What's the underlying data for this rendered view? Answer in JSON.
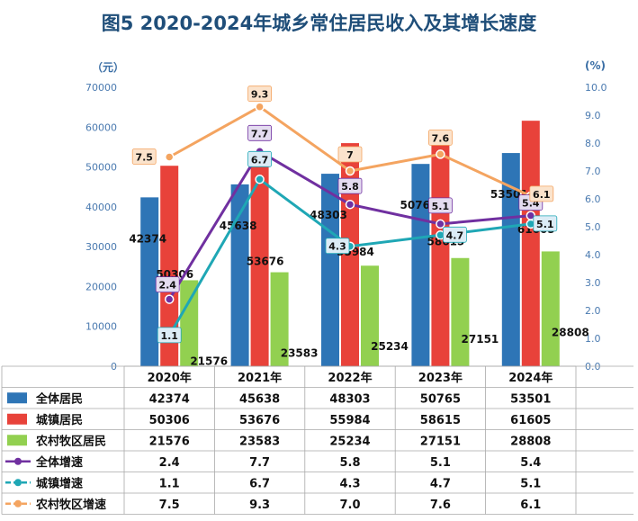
{
  "title": "图5  2020-2024年城乡常住居民收入及其增长速度",
  "chart_data": {
    "type": "bar",
    "unit_left": "（元）",
    "unit_right": "(%)",
    "categories": [
      "2020年",
      "2021年",
      "2022年",
      "2023年",
      "2024年"
    ],
    "left_axis": {
      "ylim": [
        0,
        70000
      ],
      "ticks": [
        "0",
        "10000",
        "20000",
        "30000",
        "40000",
        "50000",
        "60000",
        "70000"
      ]
    },
    "right_axis": {
      "ylim": [
        0,
        10
      ],
      "ticks": [
        "0.0",
        "1.0",
        "2.0",
        "3.0",
        "4.0",
        "5.0",
        "6.0",
        "7.0",
        "8.0",
        "9.0",
        "10.0"
      ]
    },
    "bar_series": [
      {
        "name": "全体居民",
        "color": "#2e75b6",
        "values": [
          42374,
          45638,
          48303,
          50765,
          53501
        ]
      },
      {
        "name": "城镇居民",
        "color": "#e8423a",
        "values": [
          50306,
          53676,
          55984,
          58615,
          61605
        ]
      },
      {
        "name": "农村牧区居民",
        "color": "#92d050",
        "values": [
          21576,
          23583,
          25234,
          27151,
          28808
        ]
      }
    ],
    "line_series": [
      {
        "name": "全体增速",
        "color": "#7030a0",
        "values": [
          2.4,
          7.7,
          5.8,
          5.1,
          5.4
        ]
      },
      {
        "name": "城镇增速",
        "color": "#1fa7b5",
        "values": [
          1.1,
          6.7,
          4.3,
          4.7,
          5.1
        ]
      },
      {
        "name": "农村牧区增速",
        "color": "#f4a460",
        "values": [
          7.5,
          9.3,
          7.0,
          7.6,
          6.1
        ]
      }
    ],
    "table": {
      "rows": [
        [
          "42374",
          "45638",
          "48303",
          "50765",
          "53501"
        ],
        [
          "50306",
          "53676",
          "55984",
          "58615",
          "61605"
        ],
        [
          "21576",
          "23583",
          "25234",
          "27151",
          "28808"
        ],
        [
          "2.4",
          "7.7",
          "5.8",
          "5.1",
          "5.4"
        ],
        [
          "1.1",
          "6.7",
          "4.3",
          "4.7",
          "5.1"
        ],
        [
          "7.5",
          "9.3",
          "7.0",
          "7.6",
          "6.1"
        ]
      ]
    }
  }
}
